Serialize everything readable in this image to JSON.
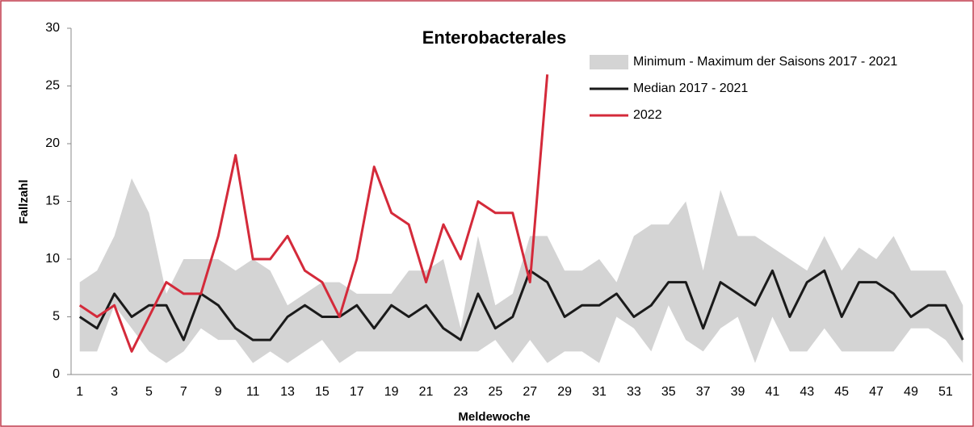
{
  "chart_data": {
    "type": "line",
    "title": "Enterobacterales",
    "xlabel": "Meldewoche",
    "ylabel": "Fallzahl",
    "categories": [
      "1",
      null,
      "3",
      null,
      "5",
      null,
      "7",
      null,
      "9",
      null,
      "11",
      null,
      "13",
      null,
      "15",
      null,
      "17",
      null,
      "19",
      null,
      "21",
      null,
      "23",
      null,
      "25",
      null,
      "27",
      null,
      "29",
      null,
      "31",
      null,
      "33",
      null,
      "35",
      null,
      "37",
      null,
      "39",
      null,
      "41",
      null,
      "43",
      null,
      "45",
      null,
      "47",
      null,
      "49",
      null,
      "51",
      null
    ],
    "ylim": [
      0,
      30
    ],
    "yticks": [
      0,
      5,
      10,
      15,
      20,
      25,
      30
    ],
    "band": {
      "name": "Minimum - Maximum der Saisons 2017 - 2021",
      "color": "#d4d4d4",
      "high": [
        8,
        9,
        12,
        17,
        14,
        7,
        10,
        10,
        10,
        9,
        10,
        9,
        6,
        7,
        8,
        8,
        7,
        7,
        7,
        9,
        9,
        10,
        4,
        12,
        6,
        7,
        12,
        12,
        9,
        9,
        10,
        8,
        12,
        13,
        13,
        15,
        9,
        16,
        12,
        12,
        11,
        10,
        9,
        12,
        9,
        11,
        10,
        12,
        9,
        9,
        9,
        6
      ],
      "low": [
        2,
        2,
        6,
        4,
        2,
        1,
        2,
        4,
        3,
        3,
        1,
        2,
        1,
        2,
        3,
        1,
        2,
        2,
        2,
        2,
        2,
        2,
        2,
        2,
        3,
        1,
        3,
        1,
        2,
        2,
        1,
        5,
        4,
        2,
        6,
        3,
        2,
        4,
        5,
        1,
        5,
        2,
        2,
        4,
        2,
        2,
        2,
        2,
        4,
        4,
        3,
        1
      ]
    },
    "series": [
      {
        "name": "Median 2017 - 2021",
        "color": "#1a1a1a",
        "values": [
          5,
          4,
          7,
          5,
          6,
          6,
          3,
          7,
          6,
          4,
          3,
          3,
          5,
          6,
          5,
          5,
          6,
          4,
          6,
          5,
          6,
          4,
          3,
          7,
          4,
          5,
          9,
          8,
          5,
          6,
          6,
          7,
          5,
          6,
          8,
          8,
          4,
          8,
          7,
          6,
          9,
          5,
          8,
          9,
          5,
          8,
          8,
          7,
          5,
          6,
          6,
          3
        ]
      },
      {
        "name": "2022",
        "color": "#d42a3a",
        "values": [
          6,
          5,
          6,
          2,
          5,
          8,
          7,
          7,
          12,
          19,
          10,
          10,
          12,
          9,
          8,
          5,
          10,
          18,
          14,
          13,
          8,
          13,
          10,
          15,
          14,
          14,
          8,
          26,
          null,
          null,
          null,
          null,
          null,
          null,
          null,
          null,
          null,
          null,
          null,
          null,
          null,
          null,
          null,
          null,
          null,
          null,
          null,
          null,
          null,
          null,
          null,
          null
        ]
      }
    ]
  }
}
